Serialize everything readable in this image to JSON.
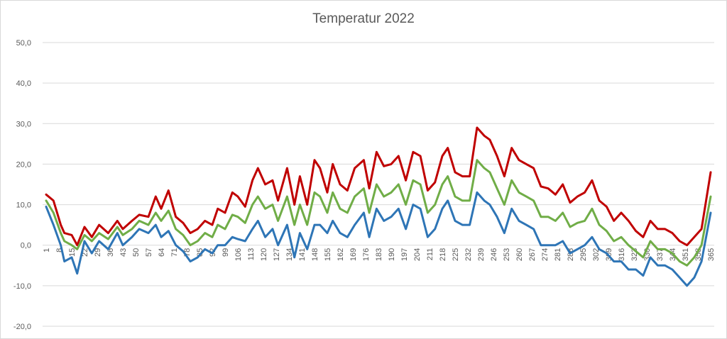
{
  "chart_data": {
    "type": "line",
    "title": "Temperatur 2022",
    "xlabel": "",
    "ylabel": "",
    "xlim": [
      1,
      365
    ],
    "ylim": [
      -20,
      50
    ],
    "y_tick_labels": [
      "-20,0",
      "-10,0",
      "0,0",
      "10,0",
      "20,0",
      "30,0",
      "40,0",
      "50,0"
    ],
    "x_tick_labels": [
      1,
      8,
      15,
      22,
      29,
      36,
      43,
      50,
      57,
      64,
      71,
      78,
      85,
      92,
      99,
      106,
      113,
      120,
      127,
      134,
      141,
      148,
      155,
      162,
      169,
      176,
      183,
      190,
      197,
      204,
      211,
      218,
      225,
      232,
      239,
      246,
      253,
      260,
      267,
      274,
      281,
      288,
      295,
      302,
      309,
      316,
      323,
      330,
      337,
      344,
      351,
      358,
      365
    ],
    "grid": true,
    "legend": "none",
    "series": [
      {
        "color": "#c00000",
        "points": [
          [
            1,
            12.5
          ],
          [
            5,
            11
          ],
          [
            9,
            5
          ],
          [
            11,
            3
          ],
          [
            15,
            2.5
          ],
          [
            18,
            0
          ],
          [
            22,
            4.5
          ],
          [
            26,
            2
          ],
          [
            30,
            5
          ],
          [
            35,
            3
          ],
          [
            40,
            6
          ],
          [
            43,
            4
          ],
          [
            48,
            6
          ],
          [
            52,
            7.5
          ],
          [
            57,
            7
          ],
          [
            61,
            12
          ],
          [
            64,
            9
          ],
          [
            68,
            13.5
          ],
          [
            72,
            7
          ],
          [
            76,
            5.5
          ],
          [
            80,
            3
          ],
          [
            84,
            4
          ],
          [
            88,
            6
          ],
          [
            92,
            5
          ],
          [
            95,
            9
          ],
          [
            99,
            8
          ],
          [
            103,
            13
          ],
          [
            106,
            12
          ],
          [
            110,
            9.5
          ],
          [
            114,
            16
          ],
          [
            117,
            19
          ],
          [
            121,
            15
          ],
          [
            125,
            16
          ],
          [
            128,
            11
          ],
          [
            133,
            19
          ],
          [
            137,
            10
          ],
          [
            140,
            17
          ],
          [
            144,
            10
          ],
          [
            148,
            21
          ],
          [
            151,
            19
          ],
          [
            155,
            13
          ],
          [
            158,
            20
          ],
          [
            162,
            15
          ],
          [
            166,
            13.5
          ],
          [
            170,
            19
          ],
          [
            175,
            21
          ],
          [
            178,
            14
          ],
          [
            182,
            23
          ],
          [
            186,
            19.5
          ],
          [
            190,
            20
          ],
          [
            194,
            22
          ],
          [
            198,
            16
          ],
          [
            202,
            23
          ],
          [
            206,
            22
          ],
          [
            210,
            13.5
          ],
          [
            214,
            15.5
          ],
          [
            218,
            22
          ],
          [
            221,
            24
          ],
          [
            225,
            18
          ],
          [
            229,
            17
          ],
          [
            233,
            17
          ],
          [
            237,
            29
          ],
          [
            241,
            27
          ],
          [
            244,
            26
          ],
          [
            248,
            22
          ],
          [
            252,
            17
          ],
          [
            256,
            24
          ],
          [
            260,
            21
          ],
          [
            264,
            20
          ],
          [
            268,
            19
          ],
          [
            272,
            14.5
          ],
          [
            276,
            14
          ],
          [
            280,
            12.5
          ],
          [
            284,
            15
          ],
          [
            288,
            10.5
          ],
          [
            292,
            12
          ],
          [
            296,
            13
          ],
          [
            300,
            16
          ],
          [
            304,
            11
          ],
          [
            308,
            9.5
          ],
          [
            312,
            6
          ],
          [
            316,
            8
          ],
          [
            320,
            6
          ],
          [
            324,
            3.5
          ],
          [
            328,
            2
          ],
          [
            332,
            6
          ],
          [
            336,
            4
          ],
          [
            340,
            4
          ],
          [
            344,
            3
          ],
          [
            348,
            1
          ],
          [
            352,
            0
          ],
          [
            356,
            2
          ],
          [
            360,
            4
          ],
          [
            365,
            18
          ]
        ]
      },
      {
        "color": "#70ad47",
        "points": [
          [
            1,
            11
          ],
          [
            5,
            8
          ],
          [
            9,
            3
          ],
          [
            11,
            1
          ],
          [
            15,
            0
          ],
          [
            18,
            -1
          ],
          [
            22,
            2.5
          ],
          [
            26,
            1
          ],
          [
            30,
            3
          ],
          [
            35,
            1.5
          ],
          [
            40,
            4.5
          ],
          [
            43,
            2.5
          ],
          [
            48,
            4
          ],
          [
            52,
            6
          ],
          [
            57,
            5
          ],
          [
            61,
            8
          ],
          [
            64,
            6
          ],
          [
            68,
            8.5
          ],
          [
            72,
            4
          ],
          [
            76,
            2.5
          ],
          [
            80,
            0
          ],
          [
            84,
            1
          ],
          [
            88,
            3
          ],
          [
            92,
            2
          ],
          [
            95,
            5
          ],
          [
            99,
            4
          ],
          [
            103,
            7.5
          ],
          [
            106,
            7
          ],
          [
            110,
            5.5
          ],
          [
            114,
            10
          ],
          [
            117,
            12
          ],
          [
            121,
            9
          ],
          [
            125,
            10
          ],
          [
            128,
            6
          ],
          [
            133,
            12
          ],
          [
            137,
            5
          ],
          [
            140,
            10
          ],
          [
            144,
            5
          ],
          [
            148,
            13
          ],
          [
            151,
            12
          ],
          [
            155,
            8
          ],
          [
            158,
            13
          ],
          [
            162,
            9
          ],
          [
            166,
            8
          ],
          [
            170,
            12
          ],
          [
            175,
            14
          ],
          [
            178,
            8
          ],
          [
            182,
            15
          ],
          [
            186,
            12
          ],
          [
            190,
            13
          ],
          [
            194,
            15
          ],
          [
            198,
            10
          ],
          [
            202,
            16
          ],
          [
            206,
            15
          ],
          [
            210,
            8
          ],
          [
            214,
            10
          ],
          [
            218,
            15
          ],
          [
            221,
            17
          ],
          [
            225,
            12
          ],
          [
            229,
            11
          ],
          [
            233,
            11
          ],
          [
            237,
            21
          ],
          [
            241,
            19
          ],
          [
            244,
            18
          ],
          [
            248,
            14
          ],
          [
            252,
            10
          ],
          [
            256,
            16
          ],
          [
            260,
            13
          ],
          [
            264,
            12
          ],
          [
            268,
            11
          ],
          [
            272,
            7
          ],
          [
            276,
            7
          ],
          [
            280,
            6
          ],
          [
            284,
            8
          ],
          [
            288,
            4.5
          ],
          [
            292,
            5.5
          ],
          [
            296,
            6
          ],
          [
            300,
            9
          ],
          [
            304,
            5
          ],
          [
            308,
            3.5
          ],
          [
            312,
            1
          ],
          [
            316,
            2
          ],
          [
            320,
            0
          ],
          [
            324,
            -1.5
          ],
          [
            328,
            -3
          ],
          [
            332,
            1
          ],
          [
            336,
            -1
          ],
          [
            340,
            -1
          ],
          [
            344,
            -2
          ],
          [
            348,
            -4
          ],
          [
            352,
            -5
          ],
          [
            356,
            -3
          ],
          [
            360,
            0
          ],
          [
            365,
            12
          ]
        ]
      },
      {
        "color": "#2e75b6",
        "points": [
          [
            1,
            9.5
          ],
          [
            5,
            5
          ],
          [
            9,
            0
          ],
          [
            11,
            -4
          ],
          [
            15,
            -3
          ],
          [
            18,
            -7
          ],
          [
            22,
            1
          ],
          [
            26,
            -2
          ],
          [
            30,
            1
          ],
          [
            35,
            -1
          ],
          [
            40,
            3
          ],
          [
            43,
            0
          ],
          [
            48,
            2
          ],
          [
            52,
            4
          ],
          [
            57,
            3
          ],
          [
            61,
            5
          ],
          [
            64,
            2
          ],
          [
            68,
            3.5
          ],
          [
            72,
            0
          ],
          [
            76,
            -1.5
          ],
          [
            80,
            -4
          ],
          [
            84,
            -3
          ],
          [
            88,
            -1
          ],
          [
            92,
            -2
          ],
          [
            95,
            0
          ],
          [
            99,
            0
          ],
          [
            103,
            2
          ],
          [
            106,
            1.5
          ],
          [
            110,
            1
          ],
          [
            114,
            4
          ],
          [
            117,
            6
          ],
          [
            121,
            2
          ],
          [
            125,
            4
          ],
          [
            128,
            0
          ],
          [
            133,
            5
          ],
          [
            137,
            -3
          ],
          [
            140,
            3
          ],
          [
            144,
            -1
          ],
          [
            148,
            5
          ],
          [
            151,
            5
          ],
          [
            155,
            3
          ],
          [
            158,
            6
          ],
          [
            162,
            3
          ],
          [
            166,
            2
          ],
          [
            170,
            5
          ],
          [
            175,
            8
          ],
          [
            178,
            2
          ],
          [
            182,
            9
          ],
          [
            186,
            6
          ],
          [
            190,
            7
          ],
          [
            194,
            9
          ],
          [
            198,
            4
          ],
          [
            202,
            10
          ],
          [
            206,
            9
          ],
          [
            210,
            2
          ],
          [
            214,
            4
          ],
          [
            218,
            9
          ],
          [
            221,
            11
          ],
          [
            225,
            6
          ],
          [
            229,
            5
          ],
          [
            233,
            5
          ],
          [
            237,
            13
          ],
          [
            241,
            11
          ],
          [
            244,
            10
          ],
          [
            248,
            7
          ],
          [
            252,
            3
          ],
          [
            256,
            9
          ],
          [
            260,
            6
          ],
          [
            264,
            5
          ],
          [
            268,
            4
          ],
          [
            272,
            0
          ],
          [
            276,
            0
          ],
          [
            280,
            0
          ],
          [
            284,
            1
          ],
          [
            288,
            -2
          ],
          [
            292,
            -1
          ],
          [
            296,
            0
          ],
          [
            300,
            2
          ],
          [
            304,
            -1
          ],
          [
            308,
            -2
          ],
          [
            312,
            -4
          ],
          [
            316,
            -4
          ],
          [
            320,
            -6
          ],
          [
            324,
            -6
          ],
          [
            328,
            -7.5
          ],
          [
            332,
            -3
          ],
          [
            336,
            -5
          ],
          [
            340,
            -5
          ],
          [
            344,
            -6
          ],
          [
            348,
            -8
          ],
          [
            352,
            -10
          ],
          [
            356,
            -8
          ],
          [
            360,
            -4
          ],
          [
            365,
            8
          ]
        ]
      }
    ]
  }
}
